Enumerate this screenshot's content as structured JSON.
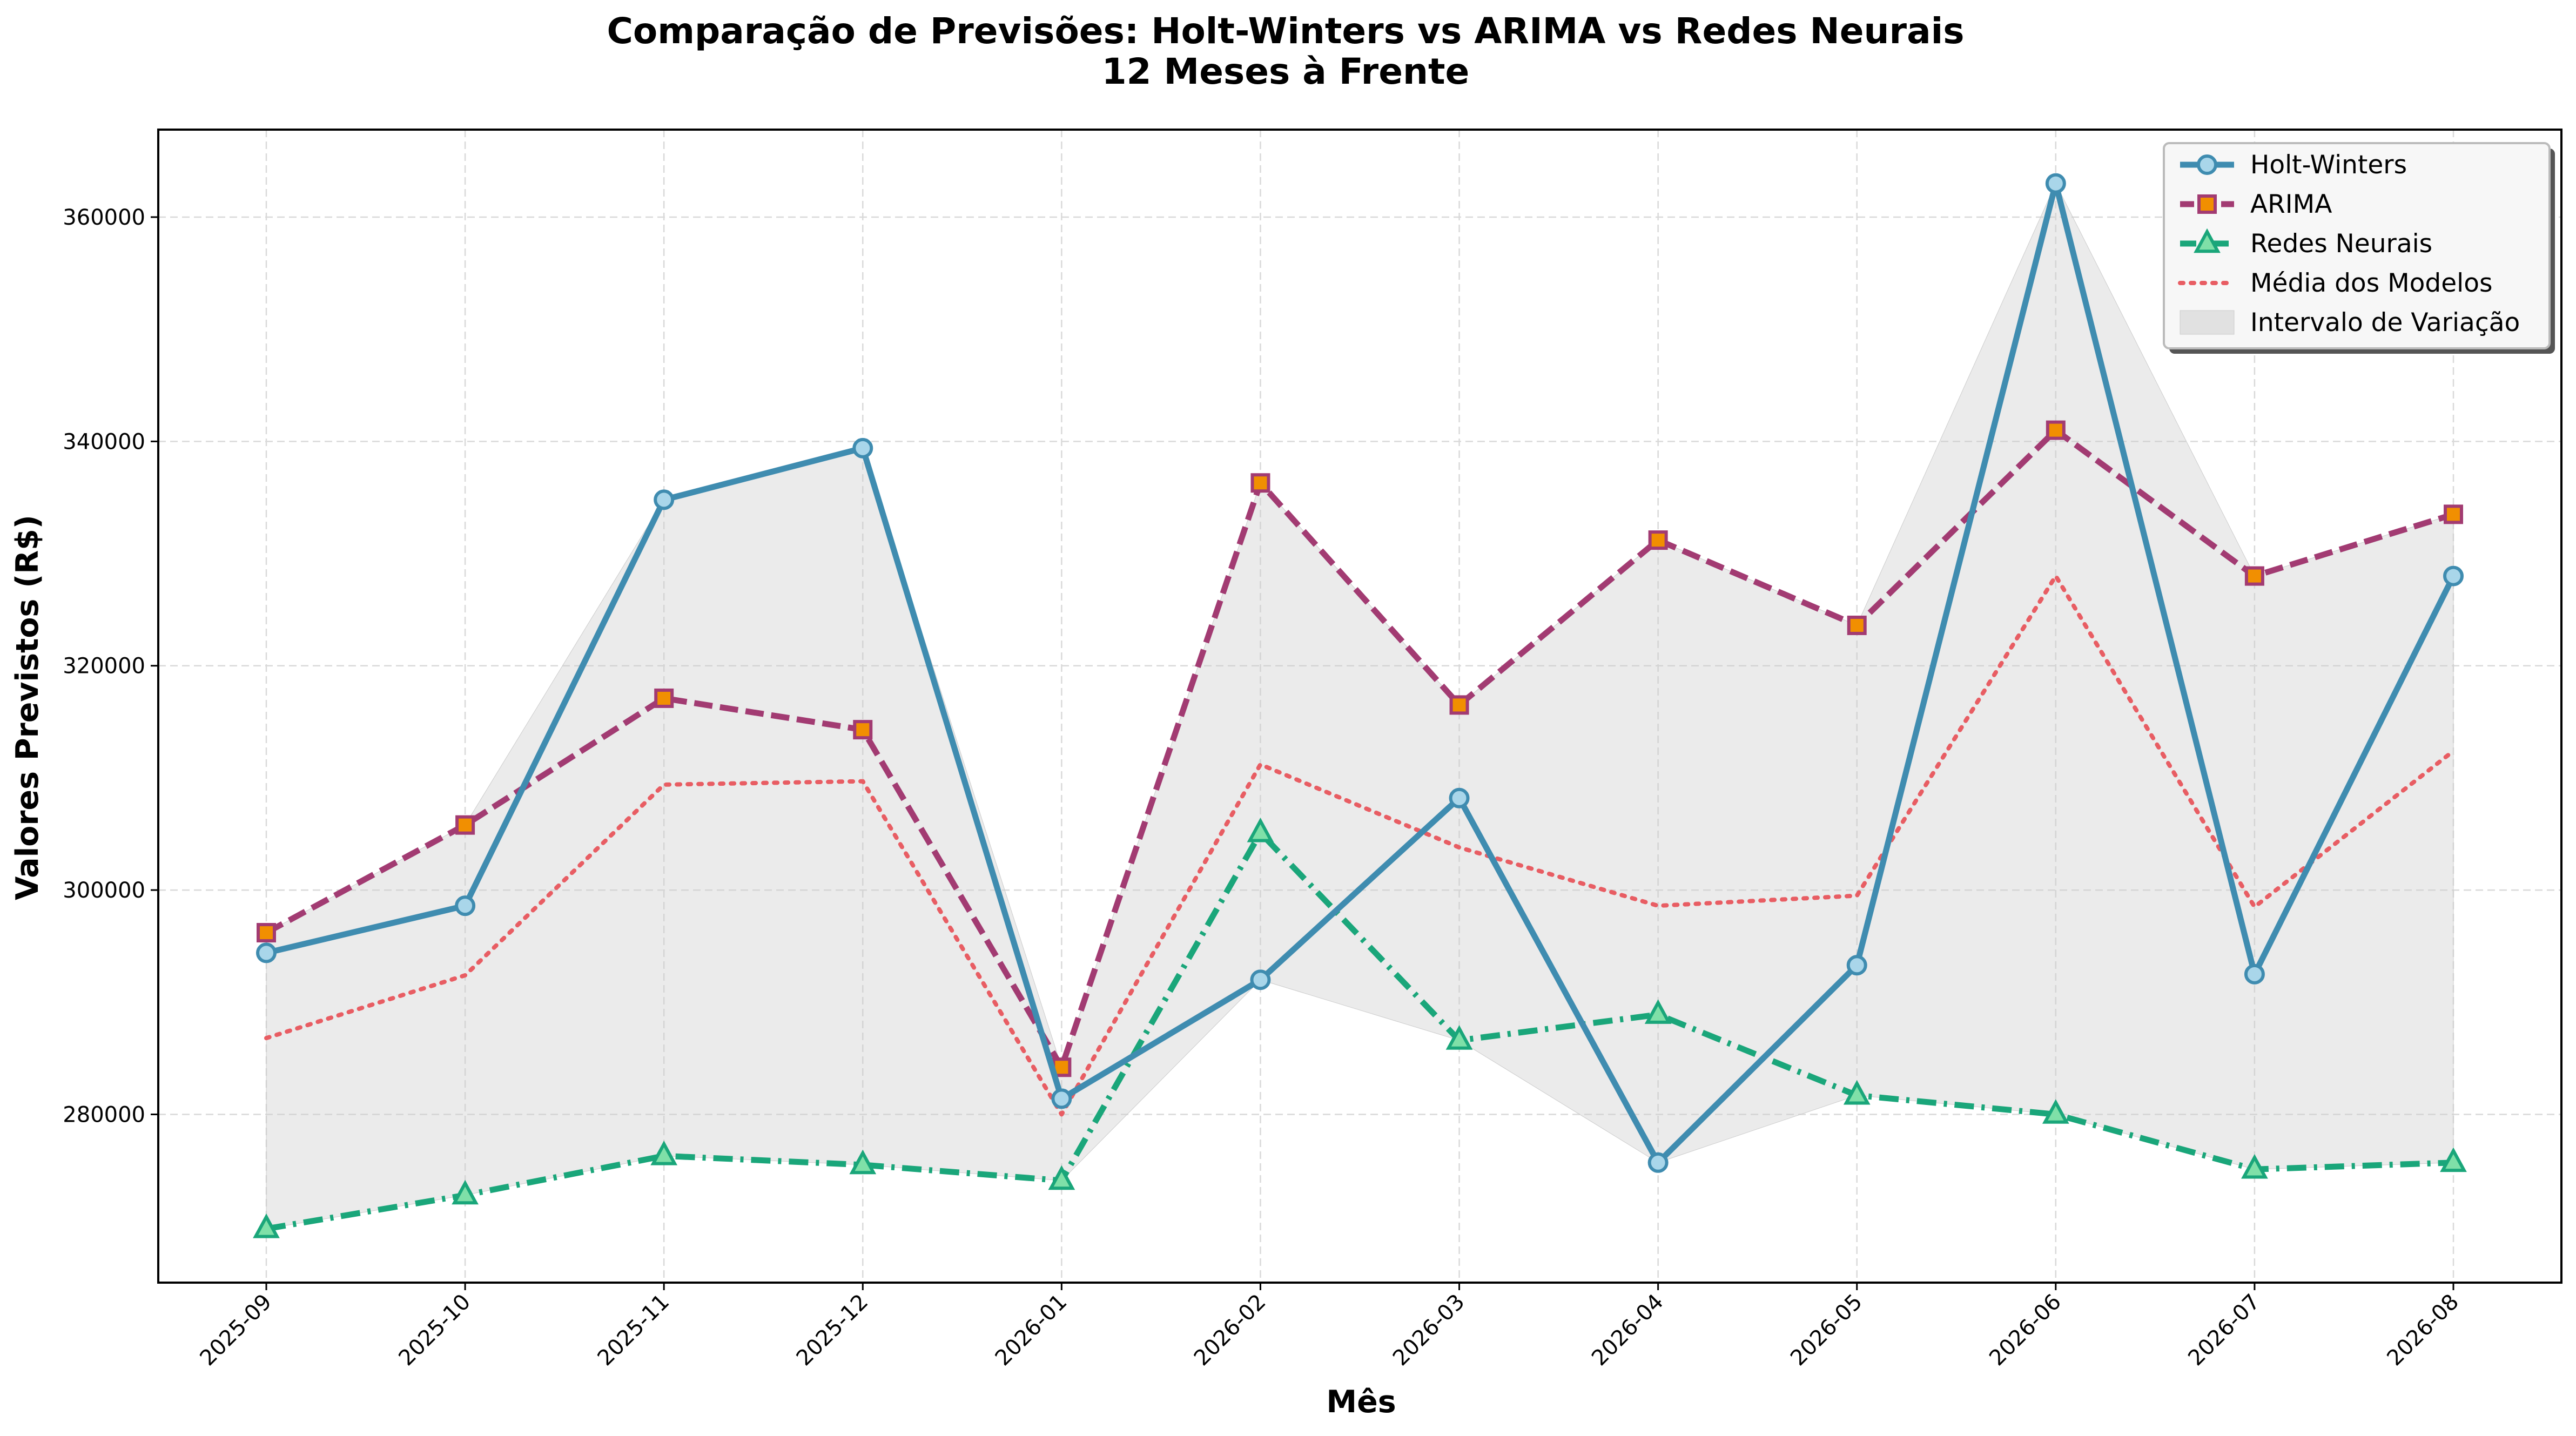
{
  "chart_data": {
    "type": "line",
    "title": "Comparação de Previsões: Holt-Winters vs ARIMA vs Redes Neurais",
    "subtitle": "12 Meses à Frente",
    "xlabel": "Mês",
    "ylabel": "Valores Previstos (R$)",
    "categories": [
      "2025-09",
      "2025-10",
      "2025-11",
      "2025-12",
      "2026-01",
      "2026-02",
      "2026-03",
      "2026-04",
      "2026-05",
      "2026-06",
      "2026-07",
      "2026-08"
    ],
    "ylim": [
      265000,
      367800
    ],
    "yticks": [
      280000,
      300000,
      320000,
      340000,
      360000
    ],
    "grid": true,
    "legend_position": "top-right",
    "series": [
      {
        "name": "Holt-Winters",
        "values": [
          294400,
          298600,
          334800,
          339400,
          281400,
          292000,
          308200,
          275700,
          293300,
          363000,
          292500,
          328000
        ],
        "color": "#3f8cb0",
        "marker": "circle",
        "line_style": "solid"
      },
      {
        "name": "ARIMA",
        "values": [
          296200,
          305800,
          317100,
          314300,
          284200,
          336300,
          316500,
          331200,
          323600,
          341000,
          328000,
          333500
        ],
        "color": "#a23b72",
        "marker_fill": "#f18f01",
        "marker": "square",
        "line_style": "dashed"
      },
      {
        "name": "Redes Neurais",
        "values": [
          269800,
          272800,
          276300,
          275500,
          274100,
          305100,
          286600,
          288900,
          281700,
          280000,
          275100,
          275700
        ],
        "color": "#1aa67a",
        "marker_fill": "#7fe0a8",
        "marker": "triangle",
        "line_style": "dashdot"
      },
      {
        "name": "Média dos Modelos",
        "values": [
          286800,
          292400,
          309400,
          309700,
          280000,
          311200,
          303800,
          298600,
          299500,
          328000,
          298500,
          312400
        ],
        "color": "#e85d63",
        "line_style": "dotted"
      }
    ],
    "band": {
      "name": "Intervalo de Variação",
      "color": "#cccccc"
    }
  }
}
